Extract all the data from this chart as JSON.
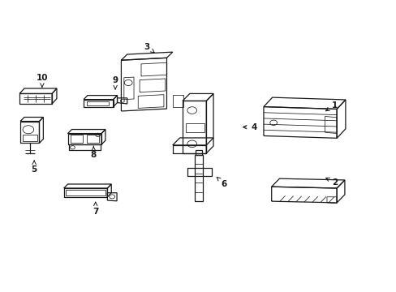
{
  "background_color": "#ffffff",
  "line_color": "#1a1a1a",
  "figsize": [
    4.89,
    3.6
  ],
  "dpi": 100,
  "label_data": [
    [
      1,
      0.845,
      0.64,
      0.815,
      0.615
    ],
    [
      2,
      0.845,
      0.375,
      0.815,
      0.395
    ],
    [
      3,
      0.37,
      0.84,
      0.395,
      0.815
    ],
    [
      4,
      0.64,
      0.565,
      0.605,
      0.565
    ],
    [
      5,
      0.085,
      0.42,
      0.085,
      0.46
    ],
    [
      6,
      0.565,
      0.37,
      0.545,
      0.395
    ],
    [
      7,
      0.24,
      0.275,
      0.24,
      0.31
    ],
    [
      8,
      0.235,
      0.47,
      0.235,
      0.5
    ],
    [
      9,
      0.29,
      0.725,
      0.29,
      0.685
    ],
    [
      10,
      0.105,
      0.735,
      0.105,
      0.7
    ]
  ]
}
